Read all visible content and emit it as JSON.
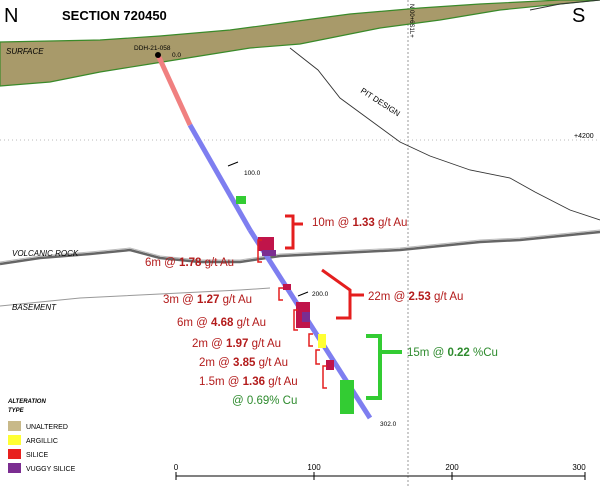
{
  "header": {
    "north": "N",
    "south": "S",
    "section_title": "SECTION 720450",
    "northing_label": "N 00+6S1L+",
    "elevation_label": "+4200"
  },
  "labels": {
    "surface": "SURFACE",
    "pit_design": "PIT DESIGN",
    "volcanic_rock": "VOLCANIC ROCK",
    "basement": "BASEMENT"
  },
  "drillhole": {
    "name": "DDH-21-058",
    "depth_start": "0.0",
    "depth_100": "100.0",
    "depth_200": "200.0",
    "depth_end": "302.0"
  },
  "intercepts": [
    {
      "prefix": "10m @ ",
      "value": "1.33",
      "unit": " g/t Au"
    },
    {
      "prefix": "6m @ ",
      "value": "1.78",
      "unit": " g/t Au"
    },
    {
      "prefix": "22m @ ",
      "value": "2.53",
      "unit": " g/t Au"
    },
    {
      "prefix": "3m @ ",
      "value": "1.27",
      "unit": " g/t Au"
    },
    {
      "prefix": "6m @ ",
      "value": "4.68",
      "unit": " g/t Au"
    },
    {
      "prefix": "2m @ ",
      "value": "1.97",
      "unit": " g/t Au"
    },
    {
      "prefix": "2m @ ",
      "value": "3.85",
      "unit": " g/t Au"
    },
    {
      "prefix": "1.5m @ ",
      "value": "1.36",
      "unit": " g/t Au"
    }
  ],
  "cu_note": "@ 0.69% Cu",
  "cu_intercept": {
    "prefix": "15m @ ",
    "value": "0.22",
    "unit": " %Cu"
  },
  "legend": {
    "title_line1": "ALTERATION",
    "title_line2": "TYPE",
    "items": [
      {
        "label": "UNALTERED",
        "color": "#c8b989"
      },
      {
        "label": "ARGILLIC",
        "color": "#ffff33"
      },
      {
        "label": "SILICE",
        "color": "#e8201e"
      },
      {
        "label": "VUGGY SILICE",
        "color": "#7b2d91"
      }
    ]
  },
  "scale": {
    "ticks": [
      "0",
      "100",
      "200",
      "300"
    ]
  },
  "colors": {
    "au_text": "#b31b1b",
    "cu_text": "#2e8b2e",
    "au_bracket": "#e41e1e",
    "cu_bracket": "#33cc33",
    "overburden": "#a89a6a",
    "hole": "#7e7ef0"
  }
}
